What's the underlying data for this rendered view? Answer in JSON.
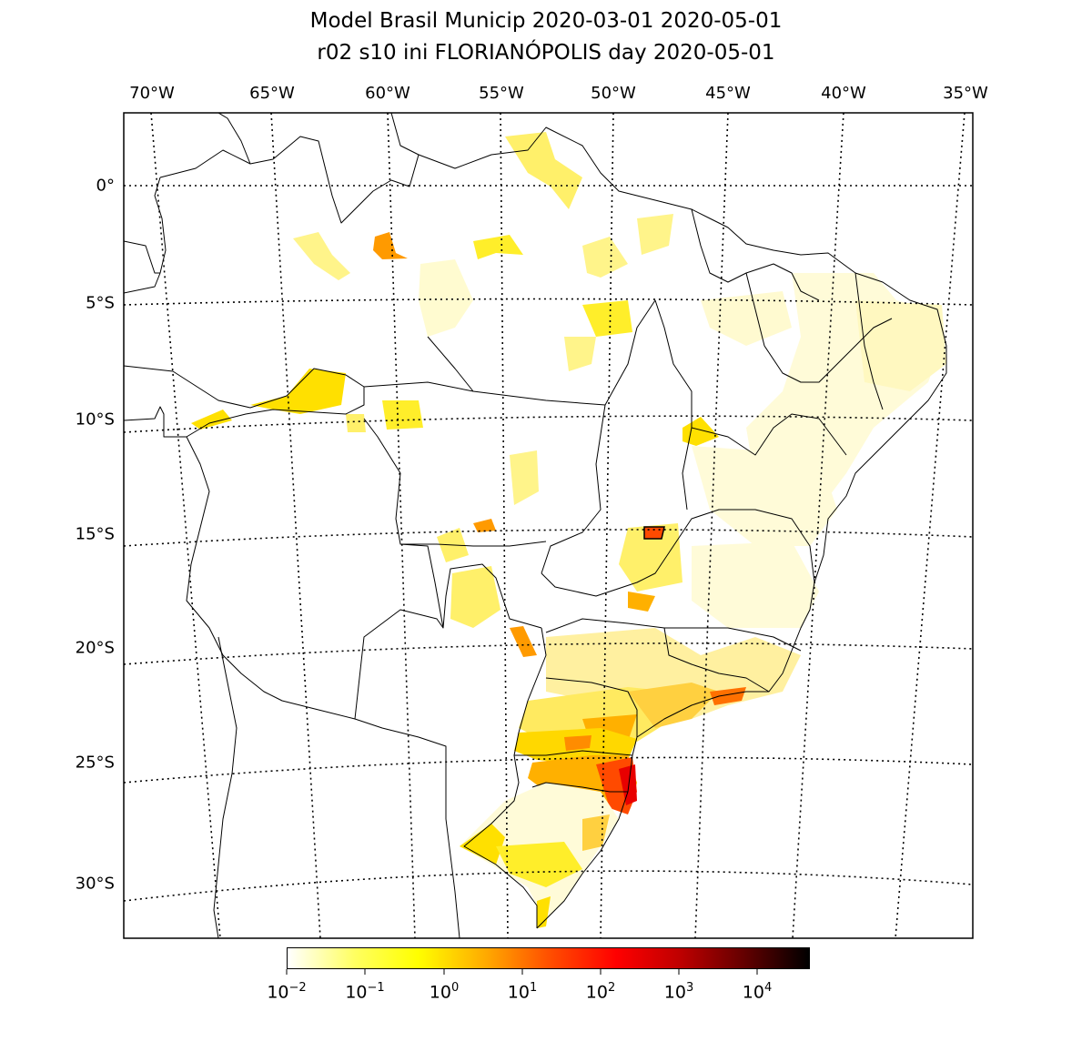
{
  "title": {
    "line1": "Model Brasil Municip 2020-03-01 2020-05-01",
    "line2": "r02 s10 ini FLORIANÓPOLIS day 2020-05-01"
  },
  "longitude_labels": [
    "70°W",
    "65°W",
    "60°W",
    "55°W",
    "50°W",
    "45°W",
    "40°W",
    "35°W"
  ],
  "latitude_labels": [
    "0°",
    "5°S",
    "10°S",
    "15°S",
    "20°S",
    "25°S",
    "30°S"
  ],
  "colorbar": {
    "scale": "log",
    "colormap": "hot_r",
    "ticks": [
      {
        "base": "10",
        "exp": "−2"
      },
      {
        "base": "10",
        "exp": "−1"
      },
      {
        "base": "10",
        "exp": "0"
      },
      {
        "base": "10",
        "exp": "1"
      },
      {
        "base": "10",
        "exp": "2"
      },
      {
        "base": "10",
        "exp": "3"
      },
      {
        "base": "10",
        "exp": "4"
      }
    ],
    "colors": [
      "#ffffff",
      "#ffff60",
      "#ffff00",
      "#ffaa00",
      "#ff5000",
      "#ff0000",
      "#c00000",
      "#600000",
      "#000000"
    ]
  },
  "highlight_colors": {
    "light_yellow": "#fff48a",
    "yellow": "#ffee2a",
    "orange": "#ff9a00",
    "red_orange": "#ff4a00",
    "red": "#e80000"
  }
}
